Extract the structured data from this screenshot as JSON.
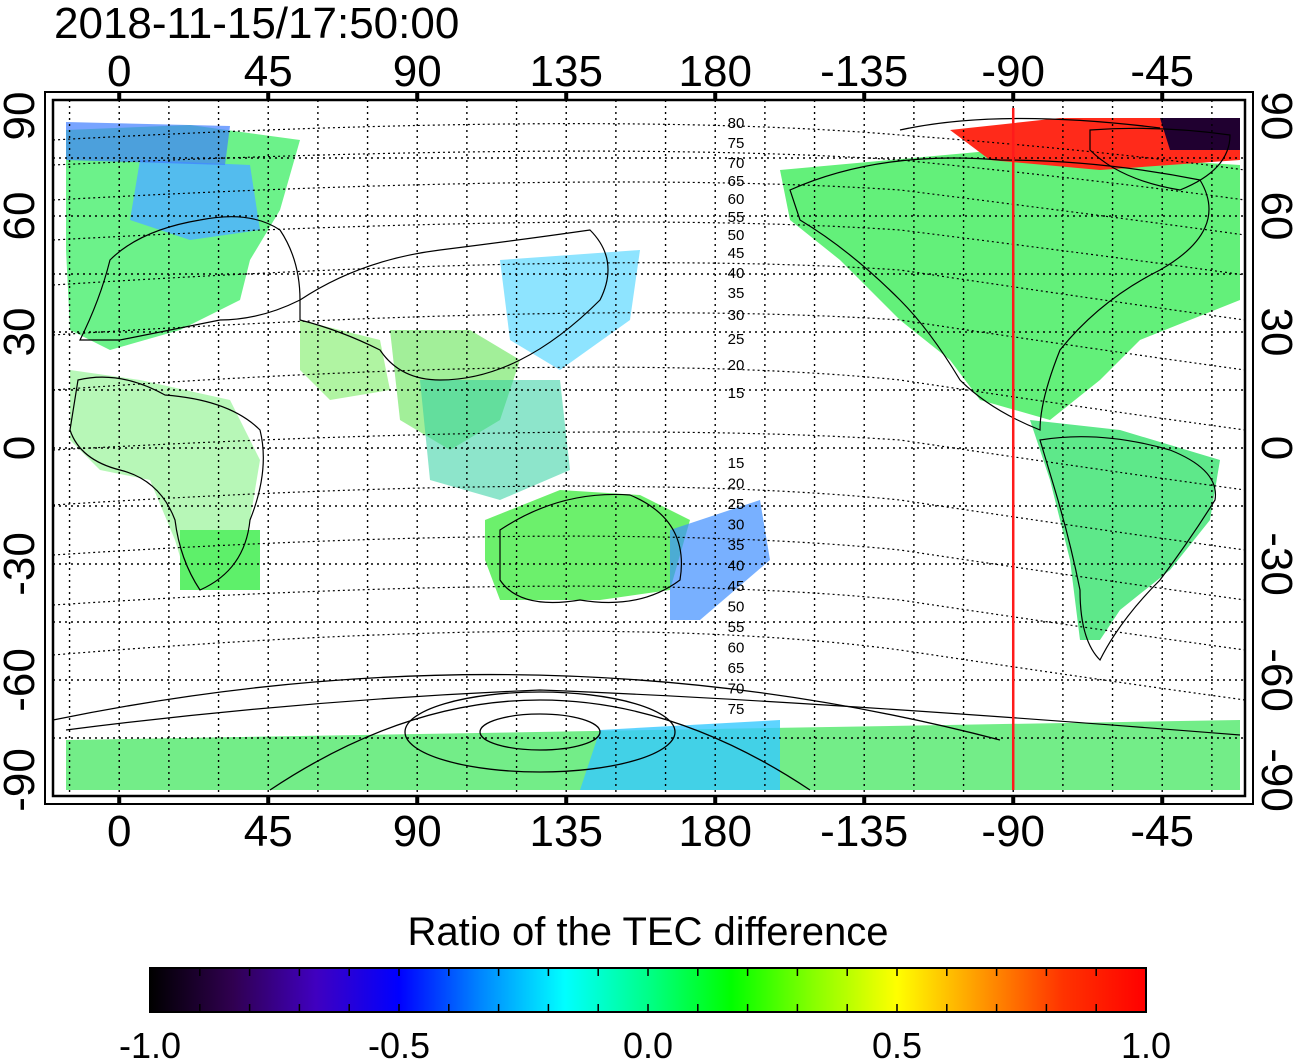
{
  "title": "2018-11-15/17:50:00",
  "map": {
    "lon_ticks": [
      "0",
      "45",
      "90",
      "135",
      "180",
      "-135",
      "-90",
      "-45"
    ],
    "lat_ticks": [
      "90",
      "60",
      "30",
      "0",
      "-30",
      "-60",
      "-90"
    ],
    "contour_labels": [
      "80",
      "75",
      "70",
      "65",
      "60",
      "55",
      "50",
      "45",
      "40",
      "35",
      "30",
      "25",
      "20",
      "15",
      "15",
      "20",
      "25",
      "30",
      "35",
      "40",
      "45",
      "50",
      "55",
      "60",
      "65",
      "70",
      "75"
    ],
    "highlight_meridian": -90,
    "colors": {
      "highlight_line": "#ff1a1a",
      "land_outline": "#000000"
    }
  },
  "colorbar": {
    "title": "Ratio of the TEC difference",
    "ticks": [
      "-1.0",
      "-0.5",
      "0.0",
      "0.5",
      "1.0"
    ],
    "stops": [
      "#000000",
      "#300050",
      "#4000c0",
      "#0000ff",
      "#0088ff",
      "#00ffff",
      "#00ff88",
      "#00ff00",
      "#88ff00",
      "#ffff00",
      "#ff9900",
      "#ff3300",
      "#ff0000"
    ]
  }
}
